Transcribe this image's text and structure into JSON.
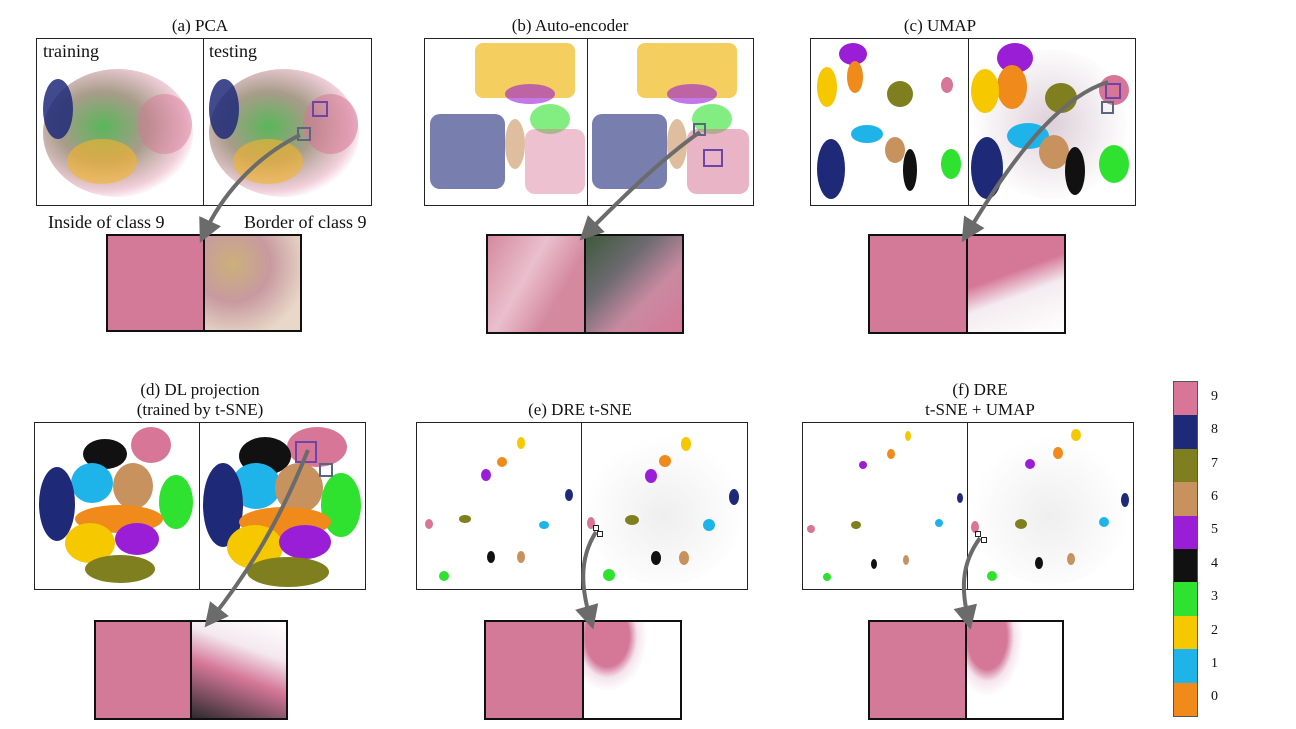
{
  "colors": {
    "0": "#f08a1a",
    "1": "#1eb4ea",
    "2": "#f5c800",
    "3": "#2fe22f",
    "4": "#111111",
    "5": "#9a1ed6",
    "6": "#c8925e",
    "7": "#7f7f1f",
    "8": "#1e2a78",
    "9": "#d77696"
  },
  "panels": {
    "a": {
      "title": "(a) PCA",
      "training_label": "training",
      "testing_label": "testing",
      "zoom_left_label": "Inside of class 9",
      "zoom_right_label": "Border of class 9"
    },
    "b": {
      "title": "(b) Auto-encoder"
    },
    "c": {
      "title": "(c) UMAP"
    },
    "d": {
      "title_line1": "(d) DL projection",
      "title_line2": "(trained by t-SNE)"
    },
    "e": {
      "title": "(e) DRE t-SNE"
    },
    "f": {
      "title_line1": "(f) DRE",
      "title_line2": "t-SNE + UMAP"
    }
  },
  "legend": {
    "classes": [
      "9",
      "8",
      "7",
      "6",
      "5",
      "4",
      "3",
      "2",
      "1",
      "0"
    ]
  }
}
